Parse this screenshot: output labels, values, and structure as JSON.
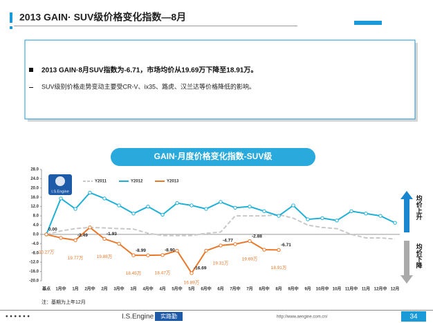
{
  "header": {
    "title": "2013 GAIN· SUV级价格变化指数—8月"
  },
  "summary": {
    "bullets": [
      "2013 GAIN·8月SUV指数为-6.71，市场均价从19.69万下降至18.91万。",
      "SUV级别价格走势变动主要受CR-V、ix35、路虎、汉兰达等价格降低的影响。"
    ]
  },
  "chart_data": {
    "type": "line",
    "title": "GAIN·月度价格变化指数-SUV级",
    "logo": "I.S.Engine",
    "categories": [
      "基点",
      "1月中",
      "1月",
      "2月中",
      "2月",
      "3月中",
      "3月",
      "4月中",
      "4月",
      "5月中",
      "5月",
      "6月中",
      "6月",
      "7月中",
      "7月",
      "8月中",
      "8月",
      "9月中",
      "9月",
      "10月中",
      "10月",
      "11月中",
      "11月",
      "12月中",
      "12月"
    ],
    "series": [
      {
        "name": "Y2011",
        "color": "#c8c8c8",
        "dashed": true,
        "values": [
          0,
          1.5,
          2.5,
          3,
          2.8,
          2.5,
          2.3,
          0.5,
          -0.5,
          -0.5,
          -0.5,
          0.5,
          1,
          8,
          8,
          8,
          8.5,
          7,
          4,
          3,
          2.5,
          0,
          -1.5,
          -1.5,
          -2
        ]
      },
      {
        "name": "Y2012",
        "color": "#1fb0d6",
        "values": [
          0,
          15.5,
          11,
          18,
          15.5,
          12.5,
          9,
          12,
          8.5,
          13.5,
          12.5,
          11,
          14,
          11.5,
          12,
          10,
          8,
          12.5,
          6.5,
          7,
          6,
          10,
          9,
          8,
          5
        ]
      },
      {
        "name": "Y2013",
        "color": "#e8782a",
        "values": [
          0,
          -1.5,
          -2.49,
          3,
          -1.93,
          -4,
          -8.99,
          -9,
          -8.9,
          -7,
          -16.69,
          -7,
          -4.77,
          -4.2,
          -2.88,
          -6.6,
          -6.71,
          null,
          null,
          null,
          null,
          null,
          null,
          null,
          null
        ],
        "value_labels": [
          "0.00",
          null,
          "-2.49",
          null,
          "-1.93",
          null,
          "-8.99",
          null,
          "-8.90",
          null,
          "-16.69",
          null,
          "-4.77",
          null,
          "-2.88",
          null,
          "-6.71",
          null,
          null,
          null,
          null,
          null,
          null,
          null,
          null
        ]
      }
    ],
    "price_labels": [
      "20.27万",
      null,
      "19.77万",
      null,
      "19.88万",
      null,
      "18.45万",
      null,
      "18.47万",
      null,
      "16.89万",
      null,
      "19.31万",
      null,
      "19.69万",
      null,
      "18.91万",
      null,
      null,
      null,
      null,
      null,
      null,
      null,
      null
    ],
    "ylim": [
      -20,
      28
    ],
    "yticks": [
      {
        "value": -20,
        "label": "-20.0"
      },
      {
        "value": -16,
        "label": "-16.0"
      },
      {
        "value": -12,
        "label": "-12.0"
      },
      {
        "value": -8,
        "label": "-8.0"
      },
      {
        "value": -4,
        "label": "-4.0"
      },
      {
        "value": 0,
        "label": "0.0"
      },
      {
        "value": 4,
        "label": "4.0"
      },
      {
        "value": 8,
        "label": "8.0"
      },
      {
        "value": 12,
        "label": "12.0"
      },
      {
        "value": 16,
        "label": "16.0"
      },
      {
        "value": 20,
        "label": "20.0"
      },
      {
        "value": 24,
        "label": "24.0"
      },
      {
        "value": 28,
        "label": "28.0"
      }
    ],
    "grid": false,
    "up_label": "均价上升",
    "down_label": "均价下降",
    "note": "注：基期为上年12月"
  },
  "footer": {
    "brand": "I.S.Engine",
    "brand_cn": "实路勤",
    "url": "http://www.aengine.com.cn/",
    "page": "34"
  }
}
